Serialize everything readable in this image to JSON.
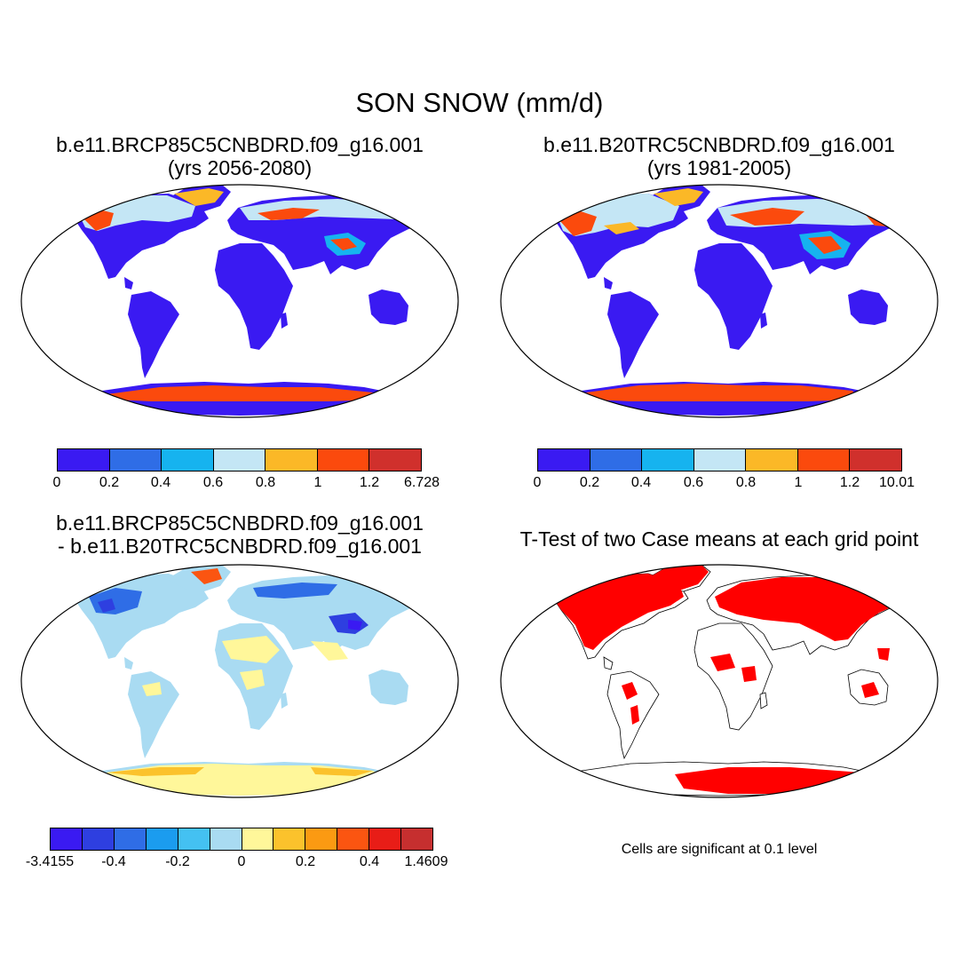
{
  "title": "SON SNOW (mm/d)",
  "panels": [
    {
      "id": "future",
      "title_line1": "b.e11.BRCP85C5CNBDRD.f09_g16.001",
      "title_line2": "(yrs 2056-2080)"
    },
    {
      "id": "historical",
      "title_line1": "b.e11.B20TRC5CNBDRD.f09_g16.001",
      "title_line2": "(yrs 1981-2005)"
    },
    {
      "id": "difference",
      "title_line1": "b.e11.BRCP85C5CNBDRD.f09_g16.001",
      "title_line2": "- b.e11.B20TRC5CNBDRD.f09_g16.001"
    },
    {
      "id": "ttest",
      "title_line1": "T-Test of two Case means at each grid point"
    }
  ],
  "colorbars": {
    "future": {
      "labels": [
        "0",
        "0.2",
        "0.4",
        "0.6",
        "0.8",
        "1",
        "1.2",
        "6.728"
      ],
      "colors": [
        "#3a1af2",
        "#2f6de6",
        "#16b3ef",
        "#c4e6f5",
        "#fbb827",
        "#fb4a0d",
        "#d0302c"
      ]
    },
    "historical": {
      "labels": [
        "0",
        "0.2",
        "0.4",
        "0.6",
        "0.8",
        "1",
        "1.2",
        "10.01"
      ],
      "colors": [
        "#3a1af2",
        "#2f6de6",
        "#16b3ef",
        "#c4e6f5",
        "#fbb827",
        "#fb4a0d",
        "#d0302c"
      ]
    },
    "difference": {
      "labels": [
        "-3.4155",
        "-0.4",
        "-0.2",
        "0",
        "0.2",
        "0.4",
        "1.4609"
      ],
      "colors": [
        "#3a1af2",
        "#2e3fe0",
        "#2f6de6",
        "#1b9cef",
        "#44c1f2",
        "#a9dbf2",
        "#fff79a",
        "#fbc22c",
        "#fb9a12",
        "#fb5511",
        "#e81d17",
        "#c62f2f"
      ]
    }
  },
  "significance_note": "Cells are significant at 0.1 level",
  "colors": {
    "ocean": "#ffffff",
    "land_low_snow": "#3a1af2",
    "land_difference_base": "#c4e6f5",
    "significant": "#ff0000"
  }
}
